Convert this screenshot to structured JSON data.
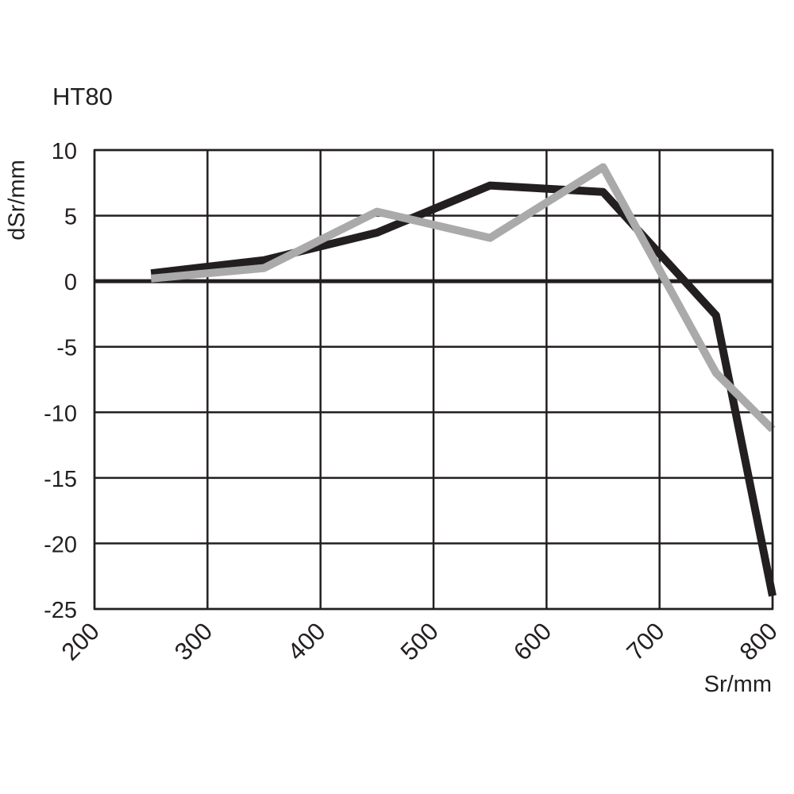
{
  "chart_data": {
    "type": "line",
    "title": "HT80",
    "xlabel": "Sr/mm",
    "ylabel": "dSr/mm",
    "xlim": [
      200,
      800
    ],
    "ylim": [
      -25,
      10
    ],
    "xticks": [
      "200",
      "300",
      "400",
      "500",
      "600",
      "700",
      "800"
    ],
    "yticks": [
      "10",
      "5",
      "0",
      "-5",
      "-10",
      "-15",
      "-20",
      "-25"
    ],
    "grid": true,
    "series": [
      {
        "color": "#231f20",
        "x": [
          250,
          350,
          450,
          550,
          650,
          750,
          800
        ],
        "y": [
          0.6,
          1.6,
          3.7,
          7.3,
          6.8,
          -2.6,
          -24
        ]
      },
      {
        "color": "#aaaaaa",
        "x": [
          250,
          350,
          450,
          550,
          650,
          750,
          800
        ],
        "y": [
          0.2,
          1.0,
          5.3,
          3.3,
          8.7,
          -7.0,
          -11.3
        ]
      }
    ]
  }
}
